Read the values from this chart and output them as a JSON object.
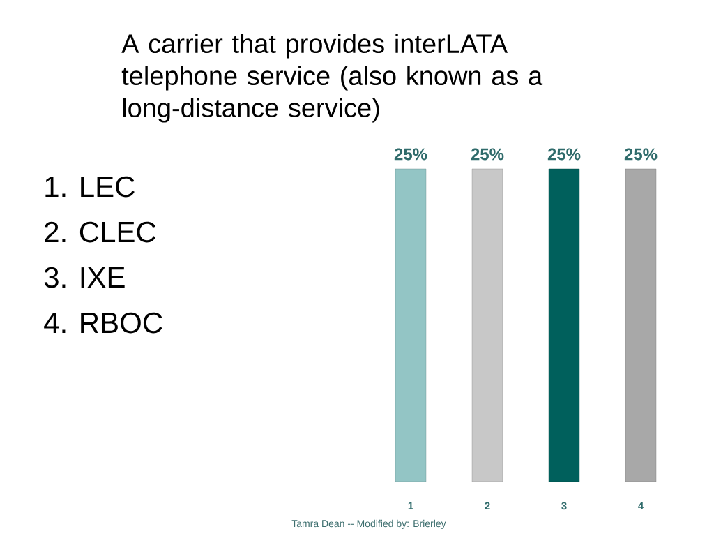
{
  "chart_data": {
    "type": "bar",
    "title": "A carrier that provides interLATA telephone service (also known as a long-distance service)",
    "categories": [
      "1",
      "2",
      "3",
      "4"
    ],
    "values": [
      25,
      25,
      25,
      25
    ],
    "value_labels": [
      "25%",
      "25%",
      "25%",
      "25%"
    ],
    "colors": [
      "#93c5c5",
      "#c8c8c8",
      "#00605c",
      "#a8a8a8"
    ],
    "annotations": [
      "1. LEC",
      "2. CLEC",
      "3. IXE",
      "4. RBOC",
      "Tamra Dean -- Modified by: Brierley"
    ]
  }
}
